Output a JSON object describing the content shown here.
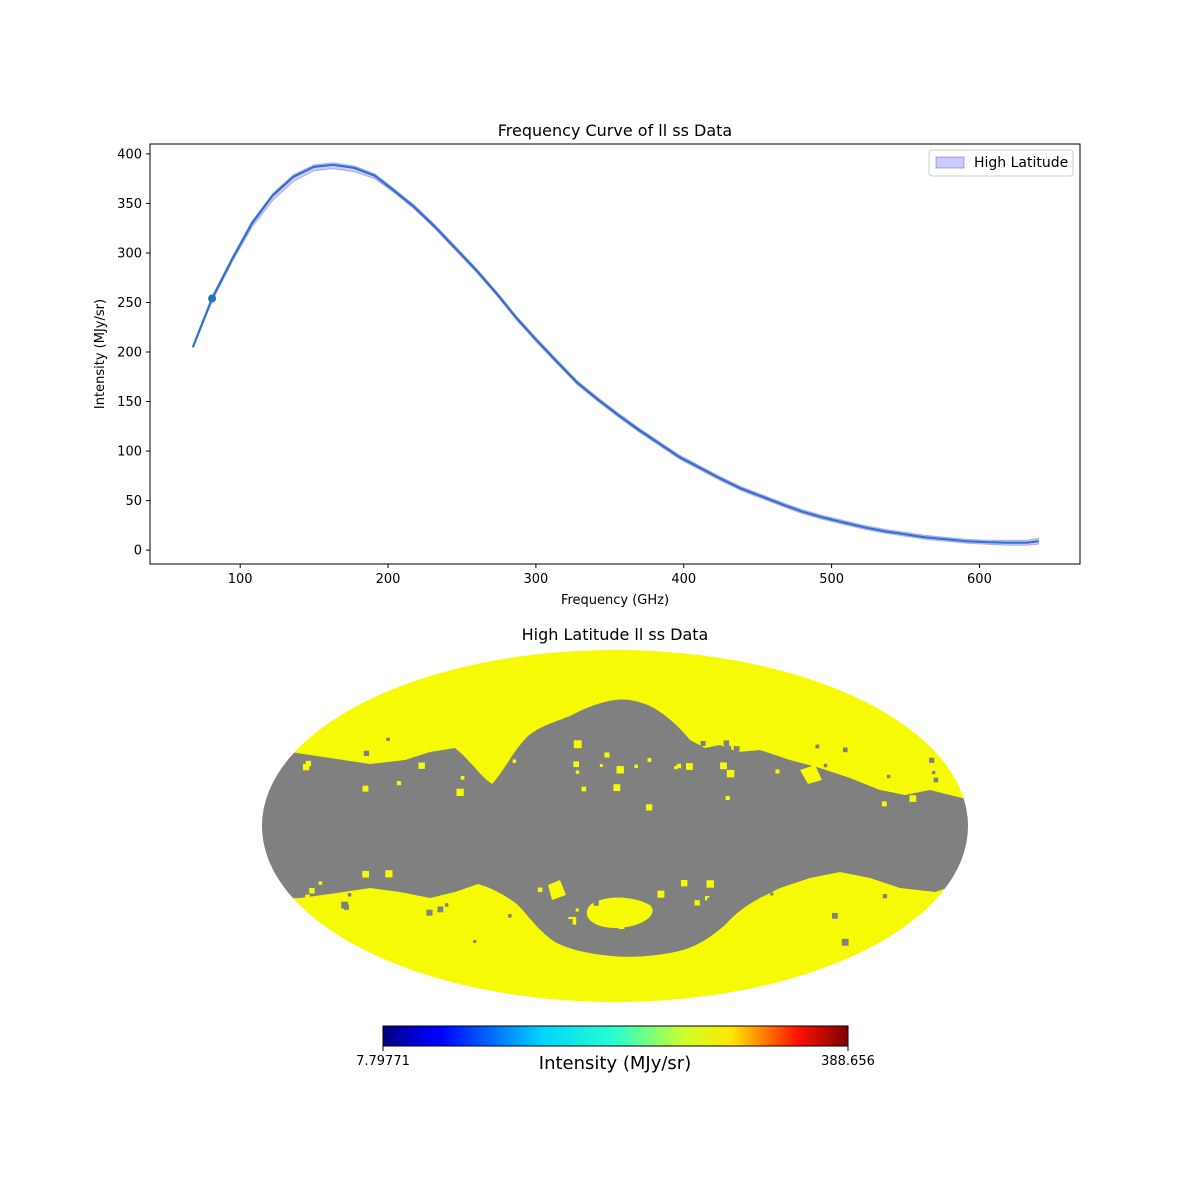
{
  "chart_data": [
    {
      "type": "line",
      "title": "Frequency Curve of ll ss Data",
      "xlabel": "Frequency (GHz)",
      "ylabel": "Intensity (MJy/sr)",
      "xlim": [
        39,
        668
      ],
      "ylim": [
        -14,
        410
      ],
      "xticks": [
        100,
        200,
        300,
        400,
        500,
        600
      ],
      "yticks": [
        0,
        50,
        100,
        150,
        200,
        250,
        300,
        350,
        400
      ],
      "grid": false,
      "legend": {
        "position": "upper-right",
        "entries": [
          "High Latitude"
        ]
      },
      "colors": {
        "line": "#3272c4",
        "band": "#0000ff",
        "marker": "#1f77b4"
      },
      "series": [
        {
          "name": "High Latitude",
          "x": [
            68,
            81,
            95,
            108,
            122,
            136,
            150,
            163,
            177,
            191,
            204,
            218,
            232,
            246,
            260,
            274,
            287,
            301,
            315,
            328,
            342,
            356,
            370,
            384,
            397,
            411,
            425,
            439,
            453,
            467,
            480,
            494,
            508,
            522,
            536,
            550,
            563,
            577,
            591,
            605,
            619,
            632,
            640
          ],
          "y": [
            205,
            254,
            295,
            330,
            358,
            377,
            387,
            389,
            386,
            378,
            363,
            346,
            326,
            304,
            282,
            258,
            234,
            211,
            189,
            169,
            152,
            136,
            121,
            107,
            94,
            83,
            72,
            62,
            54,
            46,
            39,
            33,
            28,
            23,
            19,
            16,
            13,
            11,
            9,
            8,
            7.5,
            7.5,
            9
          ],
          "upper": [
            206,
            256,
            297,
            332,
            360,
            379,
            389,
            391,
            388,
            380,
            365,
            348,
            328,
            306,
            284,
            260,
            236,
            213,
            191,
            171,
            154,
            138,
            123,
            109,
            96,
            85,
            74,
            64,
            56,
            48,
            41,
            35,
            30,
            25,
            21,
            18,
            15,
            13,
            11,
            10,
            10,
            10,
            12
          ],
          "lower": [
            204,
            251,
            292,
            326,
            353,
            372,
            383,
            385,
            382,
            375,
            361,
            344,
            324,
            302,
            280,
            256,
            232,
            209,
            187,
            167,
            150,
            134,
            119,
            105,
            92,
            81,
            70,
            60,
            52,
            44,
            37,
            31,
            26,
            21,
            17,
            14,
            11,
            9,
            7,
            6,
            5,
            5,
            6
          ],
          "highlight_point": {
            "x": 81,
            "y": 254
          }
        }
      ]
    },
    {
      "type": "heatmap",
      "projection": "mollweide",
      "title": "High Latitude ll ss Data",
      "colorbar": {
        "label": "Intensity (MJy/sr)",
        "min_label": "7.79771",
        "max_label": "388.656",
        "colormap": "jet"
      },
      "colors": {
        "masked": "#808080",
        "data": "#f6fa05"
      },
      "note_values": "high-latitude pixels only; low-latitude band masked"
    }
  ]
}
